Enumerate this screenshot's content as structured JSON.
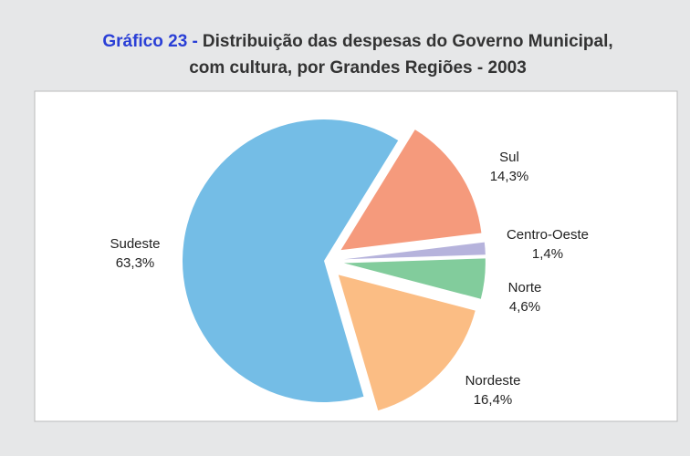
{
  "chart_data": {
    "type": "pie",
    "title_prefix": "Gráfico 23 -",
    "title": [
      "Distribuição das despesas do Governo Municipal,",
      "com cultura, por Grandes Regiões - 2003"
    ],
    "categories": [
      "Sul",
      "Centro-Oeste",
      "Norte",
      "Nordeste",
      "Sudeste"
    ],
    "values": [
      14.3,
      1.4,
      4.6,
      16.4,
      63.3
    ],
    "value_labels": [
      "14,3%",
      "1,4%",
      "4,6%",
      "16,4%",
      "63,3%"
    ],
    "colors": [
      "#f59a7c",
      "#b6b3dc",
      "#82cc9c",
      "#fbbd84",
      "#74bde6"
    ]
  }
}
